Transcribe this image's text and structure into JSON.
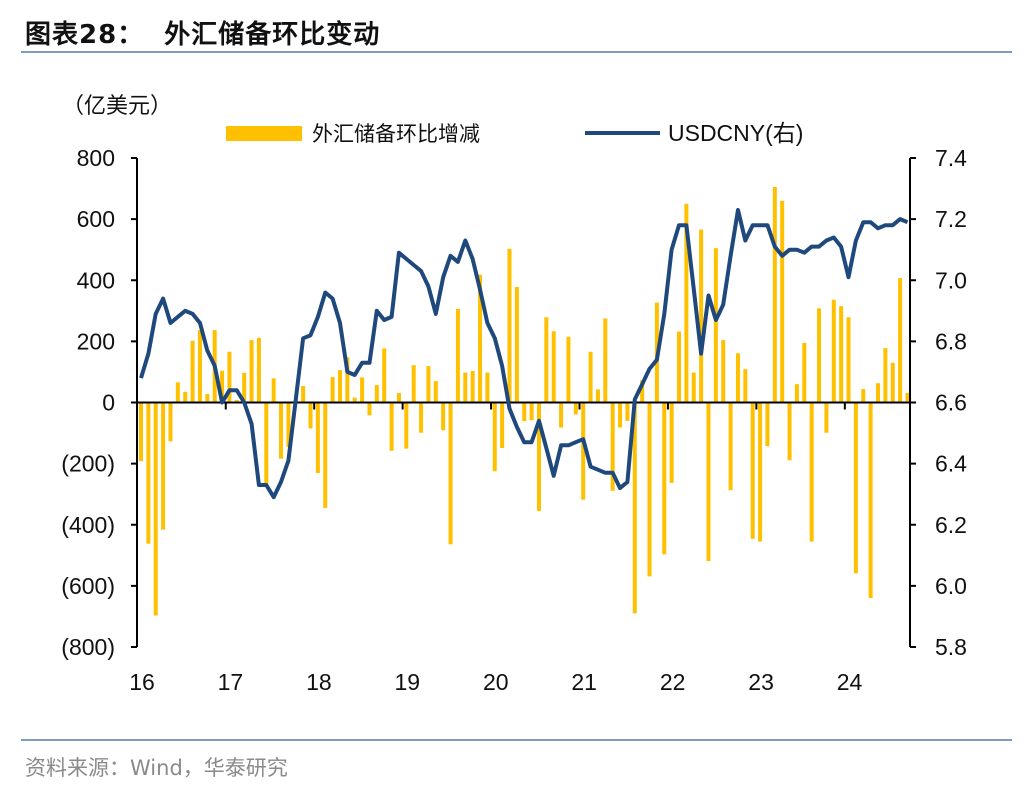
{
  "header": {
    "title": "图表28：  外汇储备环比变动",
    "unit_label": "（亿美元）"
  },
  "footer": {
    "source": "资料来源：Wind，华泰研究"
  },
  "colors": {
    "bar": "#FFC000",
    "line": "#1F497D",
    "rule": "#7F9CC0"
  },
  "chart_data": {
    "type": "bar+line",
    "title": "外汇储备环比变动",
    "ylabel": "（亿美元）",
    "x_tick_labels": [
      "16",
      "17",
      "18",
      "19",
      "20",
      "21",
      "22",
      "23",
      "24"
    ],
    "x_start": "2016-01",
    "x_frequency": "monthly",
    "left_axis": {
      "range": [
        -800,
        800
      ],
      "ticks": [
        "800",
        "600",
        "400",
        "200",
        "0",
        "(200)",
        "(400)",
        "(600)",
        "(800)"
      ]
    },
    "right_axis": {
      "range": [
        5.8,
        7.4
      ],
      "ticks": [
        "7.4",
        "7.2",
        "7.0",
        "6.8",
        "6.6",
        "6.4",
        "6.2",
        "6.0",
        "5.8"
      ]
    },
    "legend_placement": "top",
    "grid": false,
    "series": [
      {
        "name": "外汇储备环比增减",
        "type": "bar",
        "axis": "left",
        "values": [
          -192,
          -462,
          -697,
          -416,
          -127,
          66,
          35,
          202,
          237,
          28,
          237,
          104,
          166,
          8,
          97,
          204,
          212,
          -271,
          79,
          -184,
          -145,
          10,
          54,
          -85,
          -231,
          -345,
          83,
          106,
          148,
          16,
          82,
          -42,
          57,
          177,
          -158,
          31,
          -151,
          122,
          -99,
          119,
          70,
          -91,
          -464,
          306,
          98,
          103,
          418,
          98,
          -225,
          -149,
          503,
          378,
          -61,
          -58,
          -355,
          279,
          233,
          -82,
          215,
          -39,
          -318,
          166,
          43,
          275,
          -289,
          -82,
          -60,
          -690,
          73,
          -569,
          327,
          -497,
          -263,
          232,
          650,
          98,
          566,
          -519,
          505,
          204,
          -287,
          161,
          109,
          -446,
          -455,
          -143,
          705,
          660,
          -189,
          60,
          195,
          -455,
          308,
          -99,
          336,
          315,
          279,
          -559,
          44,
          -640,
          63,
          178,
          130,
          407,
          31
        ]
      },
      {
        "name": "USDCNY(右)",
        "type": "line",
        "axis": "right",
        "values": [
          6.68,
          6.76,
          6.89,
          6.94,
          6.86,
          6.88,
          6.9,
          6.89,
          6.86,
          6.77,
          6.72,
          6.6,
          6.64,
          6.64,
          6.6,
          6.53,
          6.33,
          6.33,
          6.29,
          6.34,
          6.41,
          6.61,
          6.81,
          6.82,
          6.88,
          6.96,
          6.94,
          6.86,
          6.7,
          6.69,
          6.73,
          6.73,
          6.9,
          6.87,
          6.88,
          7.09,
          7.07,
          7.05,
          7.03,
          6.98,
          6.89,
          7.01,
          7.08,
          7.06,
          7.13,
          7.07,
          6.97,
          6.86,
          6.81,
          6.72,
          6.58,
          6.52,
          6.47,
          6.47,
          6.54,
          6.45,
          6.36,
          6.46,
          6.46,
          6.47,
          6.48,
          6.39,
          6.38,
          6.37,
          6.37,
          6.32,
          6.34,
          6.61,
          6.66,
          6.71,
          6.74,
          6.89,
          7.1,
          7.18,
          7.18,
          6.97,
          6.76,
          6.95,
          6.87,
          6.92,
          7.08,
          7.23,
          7.13,
          7.18,
          7.18,
          7.18,
          7.11,
          7.08,
          7.1,
          7.1,
          7.09,
          7.11,
          7.11,
          7.13,
          7.14,
          7.11,
          7.01,
          7.13,
          7.19,
          7.19,
          7.17,
          7.18,
          7.18,
          7.2,
          7.19
        ]
      }
    ]
  }
}
